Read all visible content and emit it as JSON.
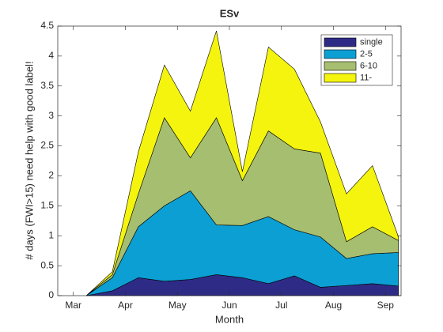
{
  "chart_data": {
    "type": "stacked-area",
    "title": "ESv",
    "xlabel": "Month",
    "ylabel": "# days (FWI>15) need help with good label!",
    "x": [
      3.25,
      3.75,
      4.25,
      4.75,
      5.25,
      5.75,
      6.25,
      6.75,
      7.25,
      7.75,
      8.25,
      8.75,
      9.25
    ],
    "series": [
      {
        "name": "single",
        "color": "#2e2b87",
        "values": [
          0,
          0.08,
          0.3,
          0.24,
          0.27,
          0.35,
          0.3,
          0.2,
          0.33,
          0.14,
          0.17,
          0.2,
          0.16
        ]
      },
      {
        "name": "2-5",
        "color": "#0c9fd4",
        "values": [
          0,
          0.22,
          0.85,
          1.26,
          1.48,
          0.83,
          0.87,
          1.12,
          0.77,
          0.84,
          0.45,
          0.5,
          0.56
        ]
      },
      {
        "name": "6-10",
        "color": "#a6be6f",
        "values": [
          0,
          0.05,
          0.55,
          1.47,
          0.55,
          1.79,
          0.75,
          1.43,
          1.35,
          1.4,
          0.28,
          0.45,
          0.2
        ]
      },
      {
        "name": "11-",
        "color": "#f4f40f",
        "values": [
          0,
          0.05,
          0.7,
          0.88,
          0.78,
          1.45,
          0.15,
          1.4,
          1.33,
          0.52,
          0.8,
          1.02,
          0.06
        ]
      }
    ],
    "xlim": [
      2.7,
      9.3
    ],
    "xticks": [
      {
        "value": 3,
        "label": "Mar"
      },
      {
        "value": 4,
        "label": "Apr"
      },
      {
        "value": 5,
        "label": "May"
      },
      {
        "value": 6,
        "label": "Jun"
      },
      {
        "value": 7,
        "label": "Jul"
      },
      {
        "value": 8,
        "label": "Aug"
      },
      {
        "value": 9,
        "label": "Sep"
      }
    ],
    "ylim": [
      0,
      4.5
    ],
    "yticks": [
      0,
      0.5,
      1,
      1.5,
      2,
      2.5,
      3,
      3.5,
      4,
      4.5
    ],
    "legend": "northeast"
  }
}
